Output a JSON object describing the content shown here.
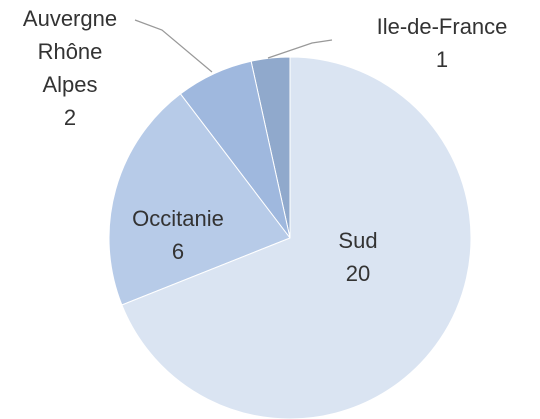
{
  "chart_data": {
    "type": "pie",
    "categories": [
      "Sud",
      "Occitanie",
      "Auvergne Rhône Alpes",
      "Ile-de-France"
    ],
    "values": [
      20,
      6,
      2,
      1
    ],
    "colors": [
      "#dae4f2",
      "#b7cbe8",
      "#9fb8de",
      "#90a9cc"
    ]
  }
}
